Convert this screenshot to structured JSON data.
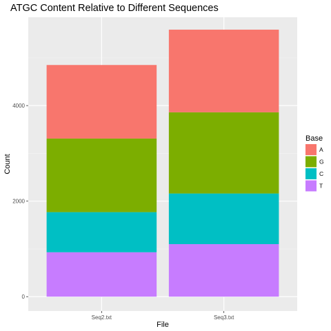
{
  "chart_data": {
    "type": "bar",
    "stacked": true,
    "title": "ATGC Content Relative to Different Sequences",
    "xlabel": "File",
    "ylabel": "Count",
    "categories": [
      "Seq2.txt",
      "Seq3.txt"
    ],
    "series": [
      {
        "name": "T",
        "values": [
          930,
          1100
        ],
        "color": "#C77CFF"
      },
      {
        "name": "C",
        "values": [
          840,
          1060
        ],
        "color": "#00BFC4"
      },
      {
        "name": "G",
        "values": [
          1540,
          1700
        ],
        "color": "#7CAE00"
      },
      {
        "name": "A",
        "values": [
          1540,
          1730
        ],
        "color": "#F8766D"
      }
    ],
    "ylim": [
      -300,
      5850
    ],
    "yticks": [
      0,
      2000,
      4000
    ],
    "grid": true,
    "legend": {
      "title": "Base",
      "placement": "right",
      "order": [
        "A",
        "G",
        "C",
        "T"
      ]
    },
    "panel_background": "#EBEBEB"
  }
}
